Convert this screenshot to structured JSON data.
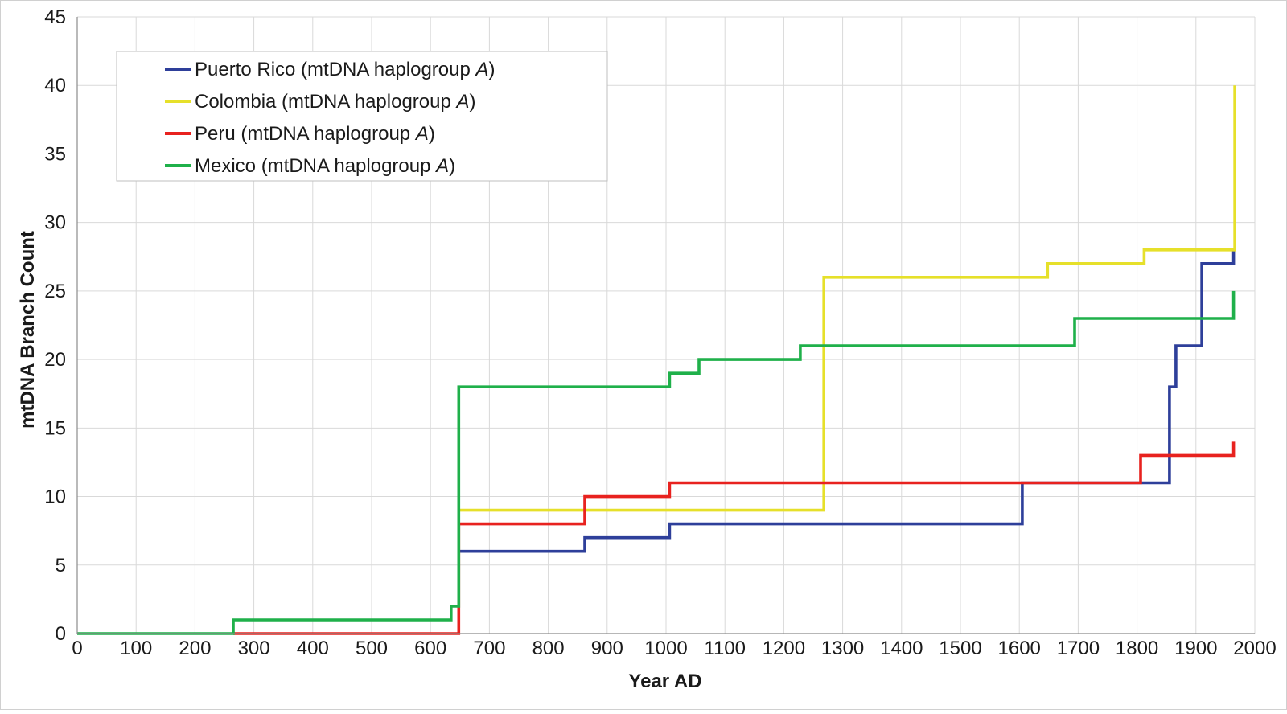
{
  "chart_data": {
    "type": "line",
    "step": true,
    "title": "",
    "xlabel": "Year AD",
    "ylabel": "mtDNA Branch Count",
    "xlim": [
      0,
      2000
    ],
    "ylim": [
      0,
      45
    ],
    "x_ticks": [
      0,
      100,
      200,
      300,
      400,
      500,
      600,
      700,
      800,
      900,
      1000,
      1100,
      1200,
      1300,
      1400,
      1500,
      1600,
      1700,
      1800,
      1900,
      2000
    ],
    "y_ticks": [
      0,
      5,
      10,
      15,
      20,
      25,
      30,
      35,
      40,
      45
    ],
    "grid": true,
    "legend_position": "top-left",
    "legend_suffix": "(mtDNA haplogroup ",
    "legend_italic": "A",
    "legend_close": ")",
    "series": [
      {
        "name": "Puerto Rico",
        "color": "#2e3f9a",
        "points": [
          [
            648,
            6
          ],
          [
            862,
            6
          ],
          [
            862,
            7
          ],
          [
            1006,
            7
          ],
          [
            1006,
            8
          ],
          [
            1605,
            8
          ],
          [
            1605,
            11
          ],
          [
            1855,
            11
          ],
          [
            1855,
            18
          ],
          [
            1866,
            18
          ],
          [
            1866,
            21
          ],
          [
            1910,
            21
          ],
          [
            1910,
            27
          ],
          [
            1964,
            27
          ],
          [
            1964,
            28
          ]
        ]
      },
      {
        "name": "Colombia",
        "color": "#e6e02a",
        "points": [
          [
            648,
            9
          ],
          [
            1268,
            9
          ],
          [
            1268,
            26
          ],
          [
            1648,
            26
          ],
          [
            1648,
            27
          ],
          [
            1812,
            27
          ],
          [
            1812,
            28
          ],
          [
            1966,
            28
          ],
          [
            1966,
            40
          ]
        ]
      },
      {
        "name": "Peru",
        "color": "#e8221f",
        "points": [
          [
            265,
            0
          ],
          [
            648,
            0
          ],
          [
            648,
            8
          ],
          [
            862,
            8
          ],
          [
            862,
            10
          ],
          [
            1006,
            10
          ],
          [
            1006,
            11
          ],
          [
            1806,
            11
          ],
          [
            1806,
            13
          ],
          [
            1964,
            13
          ],
          [
            1964,
            14
          ]
        ]
      },
      {
        "name": "Mexico",
        "color": "#1fb04a",
        "points": [
          [
            0,
            0
          ],
          [
            265,
            0
          ],
          [
            265,
            1
          ],
          [
            635,
            1
          ],
          [
            635,
            2
          ],
          [
            648,
            2
          ],
          [
            648,
            18
          ],
          [
            1006,
            18
          ],
          [
            1006,
            19
          ],
          [
            1056,
            19
          ],
          [
            1056,
            20
          ],
          [
            1228,
            20
          ],
          [
            1228,
            21
          ],
          [
            1694,
            21
          ],
          [
            1694,
            23
          ],
          [
            1964,
            23
          ],
          [
            1964,
            25
          ]
        ]
      }
    ]
  }
}
